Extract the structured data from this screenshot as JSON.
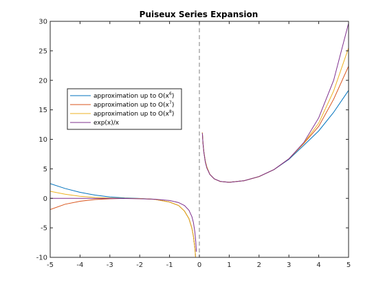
{
  "chart_data": {
    "type": "line",
    "title": "Puiseux Series Expansion",
    "xlabel": "",
    "ylabel": "",
    "xlim": [
      -5,
      5
    ],
    "ylim": [
      -10,
      30
    ],
    "x_ticks": [
      -5,
      -4,
      -3,
      -2,
      -1,
      0,
      1,
      2,
      3,
      4,
      5
    ],
    "y_ticks": [
      -10,
      -5,
      0,
      5,
      10,
      15,
      20,
      25,
      30
    ],
    "grid": false,
    "legend_position": "left-middle",
    "vertical_asymptote": 0,
    "series": [
      {
        "name_prefix": "approximation up to O(x",
        "name_exponent": "6",
        "name_suffix": ")",
        "color": "#0072BD",
        "x": [
          -5,
          -4.5,
          -4,
          -3.5,
          -3,
          -2.5,
          -2,
          -1.5,
          -1,
          -0.7,
          -0.5,
          -0.35,
          -0.25,
          -0.2,
          -0.15,
          -0.12,
          -0.1,
          0.1,
          0.12,
          0.15,
          0.2,
          0.25,
          0.35,
          0.5,
          0.7,
          1,
          1.5,
          2,
          2.5,
          3,
          3.5,
          4,
          4.5,
          5
        ],
        "y": [
          2.5,
          1.67,
          1.02,
          0.55,
          0.23,
          0.07,
          -0.02,
          -0.16,
          -0.63,
          -1.2,
          -2.15,
          -3.44,
          -5.06,
          -6.4,
          -8.43,
          -10.42,
          -12.4,
          11.15,
          9.43,
          7.88,
          6.25,
          5.3,
          4.08,
          3.3,
          2.86,
          2.72,
          2.99,
          3.69,
          4.86,
          6.6,
          9.0,
          11.43,
          14.58,
          18.3
        ]
      },
      {
        "name_prefix": "approximation up to O(x",
        "name_exponent": "7",
        "name_suffix": ")",
        "color": "#D95319",
        "x": [
          -5,
          -4.5,
          -4,
          -3.5,
          -3,
          -2.5,
          -2,
          -1.5,
          -1,
          -0.7,
          -0.5,
          -0.35,
          -0.25,
          -0.2,
          -0.15,
          -0.12,
          -0.1,
          0.1,
          0.12,
          0.15,
          0.2,
          0.25,
          0.35,
          0.5,
          0.7,
          1,
          1.5,
          2,
          2.5,
          3,
          3.5,
          4,
          4.5,
          5
        ],
        "y": [
          -1.9,
          -1.0,
          -0.5,
          -0.2,
          -0.07,
          -0.02,
          -0.04,
          -0.17,
          -0.63,
          -1.2,
          -2.15,
          -3.44,
          -5.06,
          -6.4,
          -8.43,
          -10.42,
          -12.4,
          11.15,
          9.43,
          7.88,
          6.25,
          5.3,
          4.08,
          3.3,
          2.86,
          2.72,
          2.99,
          3.69,
          4.87,
          6.69,
          9.3,
          12.2,
          16.8,
          22.4
        ]
      },
      {
        "name_prefix": "approximation up to O(x",
        "name_exponent": "8",
        "name_suffix": ")",
        "color": "#EDB120",
        "x": [
          -5,
          -4.5,
          -4,
          -3.5,
          -3,
          -2.5,
          -2,
          -1.5,
          -1,
          -0.7,
          -0.5,
          -0.35,
          -0.25,
          -0.2,
          -0.15,
          -0.12,
          -0.1,
          0.1,
          0.12,
          0.15,
          0.2,
          0.25,
          0.35,
          0.5,
          0.7,
          1,
          1.5,
          2,
          2.5,
          3,
          3.5,
          4,
          4.5,
          5
        ],
        "y": [
          1.2,
          0.7,
          0.35,
          0.15,
          0.05,
          0.0,
          -0.03,
          -0.16,
          -0.63,
          -1.2,
          -2.15,
          -3.44,
          -5.06,
          -6.4,
          -8.43,
          -10.42,
          -12.4,
          11.15,
          9.43,
          7.88,
          6.25,
          5.3,
          4.08,
          3.3,
          2.86,
          2.72,
          2.99,
          3.69,
          4.87,
          6.7,
          9.36,
          12.75,
          18.2,
          25.5
        ]
      },
      {
        "name": "exp(x)/x",
        "color": "#7E2F8E",
        "x": [
          -5,
          -4.5,
          -4,
          -3.5,
          -3,
          -2.5,
          -2,
          -1.5,
          -1,
          -0.7,
          -0.5,
          -0.35,
          -0.25,
          -0.2,
          -0.15,
          -0.12,
          -0.1,
          0.1,
          0.12,
          0.15,
          0.2,
          0.25,
          0.35,
          0.5,
          0.7,
          1,
          1.5,
          2,
          2.5,
          3,
          3.5,
          4,
          4.5,
          5
        ],
        "y": [
          -0.0013,
          -0.0025,
          -0.0046,
          -0.0086,
          -0.0166,
          -0.0328,
          -0.0677,
          -0.1488,
          -0.3679,
          -0.7094,
          -1.2131,
          -2.014,
          -3.1152,
          -4.0937,
          -5.7379,
          -7.3817,
          -9.0484,
          11.0517,
          9.3958,
          7.7889,
          6.107,
          5.1361,
          4.0545,
          3.2974,
          2.8766,
          2.7183,
          2.9878,
          3.6945,
          4.873,
          6.6952,
          9.4607,
          13.6495,
          20.0038,
          29.6826
        ]
      }
    ]
  }
}
